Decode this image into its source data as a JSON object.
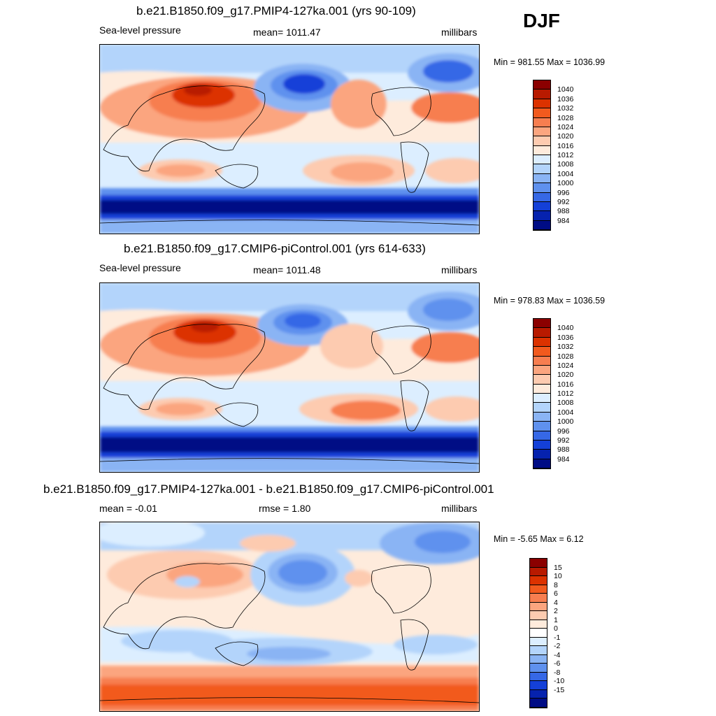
{
  "season": "DJF",
  "panels": [
    {
      "title": "b.e21.B1850.f09_g17.PMIP4-127ka.001 (yrs 90-109)",
      "left_label": "Sea-level pressure",
      "center_label": "mean= 1011.47",
      "right_label": "millibars",
      "minmax": "Min = 981.55 Max = 1036.99",
      "colorbar": {
        "colors": [
          "#8b0000",
          "#b81a00",
          "#dc3200",
          "#f25a1e",
          "#f77e50",
          "#fba57f",
          "#fdcbb0",
          "#feebdc",
          "#dceeff",
          "#b3d4fb",
          "#8ab4f4",
          "#5f91ee",
          "#3668e6",
          "#1440d8",
          "#0622ae",
          "#000c85"
        ],
        "labels": [
          "1040",
          "1036",
          "1032",
          "1028",
          "1024",
          "1020",
          "1016",
          "1012",
          "1008",
          "1004",
          "1000",
          "996",
          "992",
          "988",
          "984"
        ]
      },
      "field_stats": {
        "min": 981.55,
        "max": 1036.99,
        "mean": 1011.47,
        "units": "millibars"
      }
    },
    {
      "title": "b.e21.B1850.f09_g17.CMIP6-piControl.001 (yrs 614-633)",
      "left_label": "Sea-level pressure",
      "center_label": "mean= 1011.48",
      "right_label": "millibars",
      "minmax": "Min = 978.83 Max = 1036.59",
      "colorbar": {
        "colors": [
          "#8b0000",
          "#b81a00",
          "#dc3200",
          "#f25a1e",
          "#f77e50",
          "#fba57f",
          "#fdcbb0",
          "#feebdc",
          "#dceeff",
          "#b3d4fb",
          "#8ab4f4",
          "#5f91ee",
          "#3668e6",
          "#1440d8",
          "#0622ae",
          "#000c85"
        ],
        "labels": [
          "1040",
          "1036",
          "1032",
          "1028",
          "1024",
          "1020",
          "1016",
          "1012",
          "1008",
          "1004",
          "1000",
          "996",
          "992",
          "988",
          "984"
        ]
      },
      "field_stats": {
        "min": 978.83,
        "max": 1036.59,
        "mean": 1011.48,
        "units": "millibars"
      }
    },
    {
      "title": "b.e21.B1850.f09_g17.PMIP4-127ka.001 - b.e21.B1850.f09_g17.CMIP6-piControl.001",
      "left_label": "mean =  -0.01",
      "center_label": "rmse =   1.80",
      "right_label": "millibars",
      "minmax": "Min =  -5.65 Max =   6.12",
      "colorbar": {
        "colors": [
          "#8b0000",
          "#b81a00",
          "#dc3200",
          "#f25a1e",
          "#f77e50",
          "#fba57f",
          "#fdcbb0",
          "#feebdc",
          "#ffffff",
          "#dceeff",
          "#b3d4fb",
          "#8ab4f4",
          "#5f91ee",
          "#3668e6",
          "#1440d8",
          "#0622ae",
          "#000c85"
        ],
        "labels": [
          "15",
          "10",
          "8",
          "6",
          "4",
          "2",
          "1",
          "0",
          "-1",
          "-2",
          "-4",
          "-6",
          "-8",
          "-10",
          "-15"
        ]
      },
      "field_stats": {
        "min": -5.65,
        "max": 6.12,
        "mean": -0.01,
        "rmse": 1.8,
        "units": "millibars"
      }
    }
  ]
}
